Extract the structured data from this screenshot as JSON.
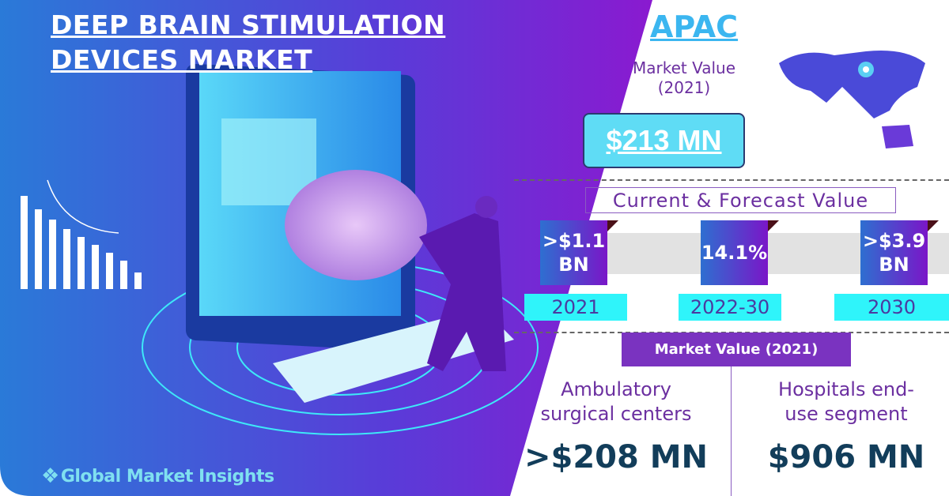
{
  "title_lines": [
    "DEEP BRAIN STIMULATION",
    "DEVICES MARKET"
  ],
  "logo": "Global Market Insights",
  "region": "APAC",
  "region_market_value_label": [
    "Market Value",
    "(2021)"
  ],
  "region_value": "$213 MN",
  "forecast": {
    "heading": "Current & Forecast Value",
    "items": [
      {
        "value": [
          ">$1.1",
          "BN"
        ],
        "period": "2021"
      },
      {
        "value": [
          "14.1%"
        ],
        "period": "2022-30"
      },
      {
        "value": [
          ">$3.9",
          "BN"
        ],
        "period": "2030"
      }
    ]
  },
  "segments": {
    "heading": "Market Value (2021)",
    "items": [
      {
        "label": [
          "Ambulatory",
          "surgical centers"
        ],
        "value": ">$208 MN"
      },
      {
        "label": [
          "Hospitals end-",
          "use segment"
        ],
        "value": "$906 MN"
      }
    ]
  },
  "colors": {
    "accent_blue": "#2e6fd0",
    "accent_purple": "#7a16c8",
    "cyan": "#2ff4fa"
  }
}
